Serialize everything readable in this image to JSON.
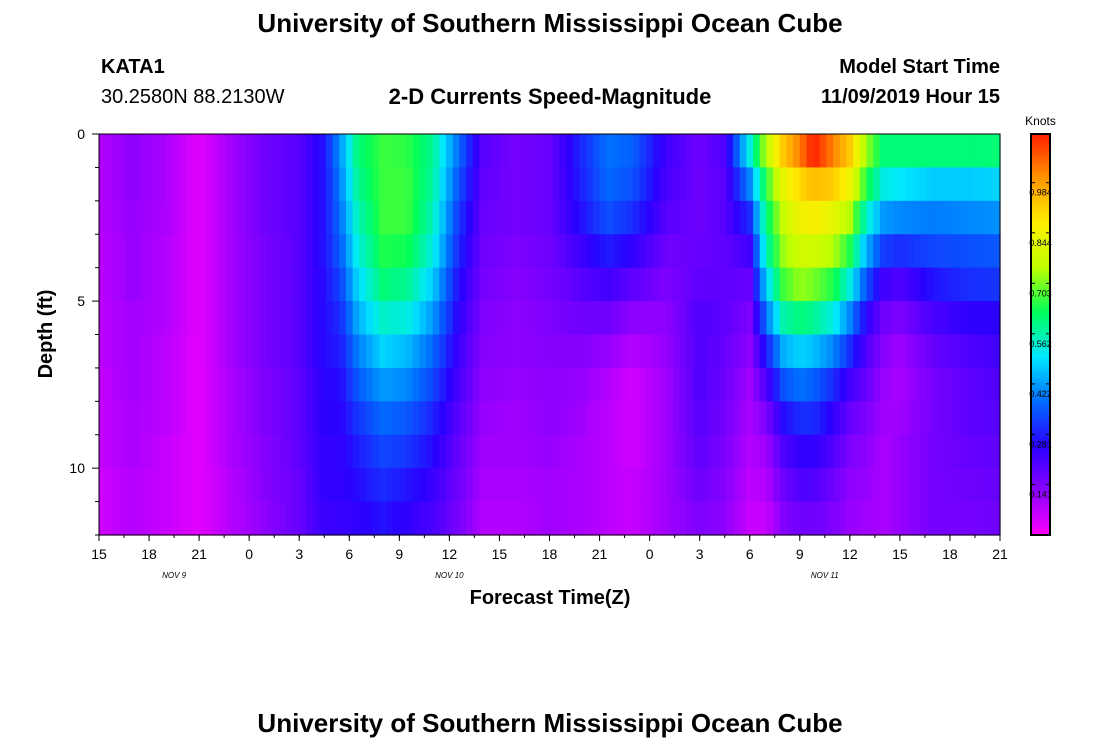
{
  "header": {
    "title": "University of Southern Mississippi Ocean Cube",
    "station_id": "KATA1",
    "station_position": "30.2580N 88.2130W",
    "plot_title": "2-D Currents Speed-Magnitude",
    "model_start_label": "Model Start Time",
    "model_start_value": "11/09/2019 Hour 15"
  },
  "footer": {
    "title": "University of Southern Mississippi Ocean Cube"
  },
  "chart_data": {
    "type": "heatmap",
    "xlabel": "Forecast Time(Z)",
    "ylabel": "Depth (ft)",
    "x_start_hour": 15,
    "x_end_hour": 69,
    "x_tick_labels": [
      "15",
      "18",
      "21",
      "0",
      "3",
      "6",
      "9",
      "12",
      "15",
      "18",
      "21",
      "0",
      "3",
      "6",
      "9",
      "12",
      "15",
      "18",
      "21"
    ],
    "date_labels": [
      {
        "text": "NOV  9",
        "hour": 19.5
      },
      {
        "text": "NOV 10",
        "hour": 36
      },
      {
        "text": "NOV 11",
        "hour": 58.5
      }
    ],
    "ylim": [
      0,
      12
    ],
    "y_tick_labels": [
      "0",
      "5",
      "10"
    ],
    "y_ticks": [
      0,
      5,
      10
    ],
    "depth_levels": [
      0.5,
      1.5,
      2.5,
      3.5,
      4.5,
      5.5,
      6.5,
      7.5,
      8.5,
      9.5,
      10.5,
      11.5
    ],
    "colorbar": {
      "unit": "Knots",
      "min": 0,
      "max": 1.12,
      "tick_labels": [
        "0.141",
        "0.281",
        "0.422",
        "0.562",
        "0.703",
        "0.844",
        "0.984"
      ],
      "tick_values": [
        0.141,
        0.281,
        0.422,
        0.562,
        0.703,
        0.844,
        0.984
      ],
      "colors": [
        "#ff00ff",
        "#8a00ff",
        "#2a00ff",
        "#006cff",
        "#00e8ff",
        "#00ff5a",
        "#bfff00",
        "#ffee00",
        "#ff9600",
        "#ff1e00"
      ]
    },
    "speed_profiles": [
      {
        "hour": 15,
        "speeds": [
          0.08,
          0.08,
          0.08,
          0.07,
          0.07,
          0.07,
          0.07,
          0.06,
          0.06,
          0.06,
          0.05,
          0.05
        ]
      },
      {
        "hour": 17,
        "speeds": [
          0.12,
          0.12,
          0.11,
          0.11,
          0.11,
          0.1,
          0.1,
          0.1,
          0.09,
          0.09,
          0.08,
          0.08
        ]
      },
      {
        "hour": 19,
        "speeds": [
          0.09,
          0.09,
          0.09,
          0.08,
          0.08,
          0.08,
          0.07,
          0.07,
          0.07,
          0.06,
          0.06,
          0.06
        ]
      },
      {
        "hour": 21,
        "speeds": [
          0.03,
          0.03,
          0.03,
          0.03,
          0.03,
          0.03,
          0.03,
          0.03,
          0.03,
          0.03,
          0.03,
          0.03
        ]
      },
      {
        "hour": 23,
        "speeds": [
          0.1,
          0.1,
          0.1,
          0.1,
          0.1,
          0.1,
          0.1,
          0.09,
          0.09,
          0.09,
          0.08,
          0.08
        ]
      },
      {
        "hour": 25,
        "speeds": [
          0.16,
          0.16,
          0.16,
          0.15,
          0.15,
          0.15,
          0.15,
          0.14,
          0.14,
          0.13,
          0.13,
          0.12
        ]
      },
      {
        "hour": 27,
        "speeds": [
          0.19,
          0.19,
          0.19,
          0.19,
          0.19,
          0.19,
          0.19,
          0.18,
          0.18,
          0.18,
          0.17,
          0.17
        ]
      },
      {
        "hour": 28.5,
        "speeds": [
          0.27,
          0.27,
          0.27,
          0.27,
          0.26,
          0.26,
          0.26,
          0.25,
          0.25,
          0.24,
          0.24,
          0.23
        ]
      },
      {
        "hour": 29.5,
        "speeds": [
          0.42,
          0.4,
          0.38,
          0.36,
          0.33,
          0.3,
          0.28,
          0.26,
          0.25,
          0.24,
          0.24,
          0.23
        ]
      },
      {
        "hour": 30.5,
        "speeds": [
          0.6,
          0.58,
          0.55,
          0.52,
          0.48,
          0.44,
          0.39,
          0.35,
          0.31,
          0.28,
          0.26,
          0.24
        ]
      },
      {
        "hour": 32,
        "speeds": [
          0.66,
          0.66,
          0.66,
          0.64,
          0.6,
          0.54,
          0.48,
          0.42,
          0.37,
          0.33,
          0.3,
          0.27
        ]
      },
      {
        "hour": 33.5,
        "speeds": [
          0.65,
          0.66,
          0.66,
          0.63,
          0.58,
          0.52,
          0.45,
          0.4,
          0.35,
          0.31,
          0.27,
          0.24
        ]
      },
      {
        "hour": 35,
        "speeds": [
          0.58,
          0.57,
          0.55,
          0.52,
          0.47,
          0.42,
          0.37,
          0.33,
          0.29,
          0.26,
          0.23,
          0.21
        ]
      },
      {
        "hour": 36.5,
        "speeds": [
          0.38,
          0.35,
          0.32,
          0.3,
          0.27,
          0.25,
          0.23,
          0.21,
          0.19,
          0.17,
          0.16,
          0.15
        ]
      },
      {
        "hour": 38,
        "speeds": [
          0.19,
          0.18,
          0.17,
          0.16,
          0.15,
          0.14,
          0.13,
          0.12,
          0.11,
          0.1,
          0.09,
          0.08
        ]
      },
      {
        "hour": 40,
        "speeds": [
          0.15,
          0.15,
          0.15,
          0.14,
          0.13,
          0.12,
          0.12,
          0.11,
          0.1,
          0.1,
          0.09,
          0.08
        ]
      },
      {
        "hour": 42,
        "speeds": [
          0.17,
          0.17,
          0.17,
          0.16,
          0.15,
          0.14,
          0.13,
          0.12,
          0.12,
          0.11,
          0.1,
          0.1
        ]
      },
      {
        "hour": 44,
        "speeds": [
          0.3,
          0.29,
          0.27,
          0.23,
          0.19,
          0.16,
          0.13,
          0.11,
          0.1,
          0.09,
          0.09,
          0.09
        ]
      },
      {
        "hour": 45.5,
        "speeds": [
          0.38,
          0.37,
          0.34,
          0.28,
          0.22,
          0.16,
          0.11,
          0.08,
          0.07,
          0.07,
          0.07,
          0.07
        ]
      },
      {
        "hour": 47,
        "speeds": [
          0.36,
          0.34,
          0.3,
          0.24,
          0.18,
          0.12,
          0.08,
          0.05,
          0.05,
          0.05,
          0.06,
          0.06
        ]
      },
      {
        "hour": 49,
        "speeds": [
          0.22,
          0.21,
          0.19,
          0.16,
          0.14,
          0.12,
          0.11,
          0.1,
          0.1,
          0.1,
          0.1,
          0.1
        ]
      },
      {
        "hour": 51,
        "speeds": [
          0.16,
          0.16,
          0.16,
          0.17,
          0.18,
          0.2,
          0.2,
          0.2,
          0.19,
          0.18,
          0.16,
          0.14
        ]
      },
      {
        "hour": 52.5,
        "speeds": [
          0.2,
          0.19,
          0.19,
          0.18,
          0.18,
          0.18,
          0.17,
          0.16,
          0.15,
          0.14,
          0.13,
          0.12
        ]
      },
      {
        "hour": 54,
        "speeds": [
          0.52,
          0.4,
          0.3,
          0.22,
          0.17,
          0.14,
          0.12,
          0.1,
          0.09,
          0.08,
          0.07,
          0.06
        ]
      },
      {
        "hour": 55,
        "speeds": [
          0.75,
          0.65,
          0.6,
          0.56,
          0.48,
          0.38,
          0.28,
          0.2,
          0.14,
          0.1,
          0.08,
          0.06
        ]
      },
      {
        "hour": 56,
        "speeds": [
          0.92,
          0.82,
          0.76,
          0.72,
          0.66,
          0.56,
          0.44,
          0.34,
          0.26,
          0.2,
          0.16,
          0.13
        ]
      },
      {
        "hour": 57,
        "speeds": [
          1.02,
          0.9,
          0.84,
          0.78,
          0.72,
          0.6,
          0.48,
          0.38,
          0.3,
          0.24,
          0.2,
          0.16
        ]
      },
      {
        "hour": 57.8,
        "speeds": [
          1.12,
          0.94,
          0.86,
          0.78,
          0.7,
          0.58,
          0.46,
          0.36,
          0.3,
          0.24,
          0.2,
          0.16
        ]
      },
      {
        "hour": 59,
        "speeds": [
          1.02,
          0.92,
          0.82,
          0.74,
          0.64,
          0.52,
          0.4,
          0.3,
          0.24,
          0.2,
          0.16,
          0.14
        ]
      },
      {
        "hour": 60,
        "speeds": [
          0.92,
          0.84,
          0.74,
          0.64,
          0.52,
          0.4,
          0.3,
          0.22,
          0.17,
          0.14,
          0.12,
          0.11
        ]
      },
      {
        "hour": 61,
        "speeds": [
          0.72,
          0.64,
          0.54,
          0.44,
          0.34,
          0.25,
          0.2,
          0.17,
          0.14,
          0.12,
          0.11,
          0.1
        ]
      },
      {
        "hour": 62,
        "speeds": [
          0.6,
          0.52,
          0.42,
          0.32,
          0.22,
          0.16,
          0.13,
          0.11,
          0.1,
          0.09,
          0.09,
          0.09
        ]
      },
      {
        "hour": 63,
        "speeds": [
          0.6,
          0.5,
          0.4,
          0.3,
          0.2,
          0.14,
          0.1,
          0.09,
          0.1,
          0.11,
          0.11,
          0.11
        ]
      },
      {
        "hour": 65,
        "speeds": [
          0.6,
          0.47,
          0.39,
          0.33,
          0.27,
          0.21,
          0.17,
          0.15,
          0.15,
          0.15,
          0.15,
          0.15
        ]
      },
      {
        "hour": 67,
        "speeds": [
          0.6,
          0.47,
          0.4,
          0.34,
          0.3,
          0.24,
          0.2,
          0.18,
          0.18,
          0.17,
          0.16,
          0.15
        ]
      },
      {
        "hour": 69,
        "speeds": [
          0.6,
          0.48,
          0.41,
          0.35,
          0.31,
          0.25,
          0.22,
          0.2,
          0.19,
          0.18,
          0.17,
          0.16
        ]
      }
    ]
  }
}
